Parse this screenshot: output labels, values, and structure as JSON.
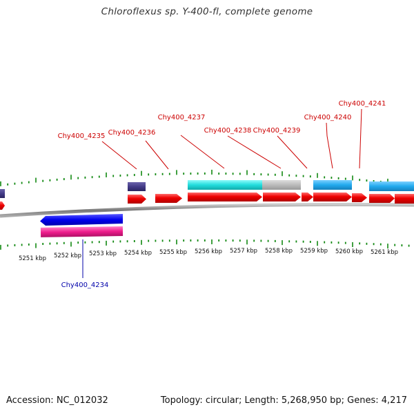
{
  "title": "Chloroflexus sp. Y-400-fl, complete genome",
  "accession": "Accession: NC_012032",
  "summary": "Topology: circular; Length: 5,268,950 bp; Genes: 4,217",
  "colors": {
    "forward_gene": "#ee0000",
    "cds_cyan": "#22dddd",
    "cds_light_blue": "#22aaee",
    "cds_gray": "#bbbbbb",
    "cds_dark": "#443c88",
    "reverse_gene": "#0000ee",
    "reverse_cds": "#ee1c8c",
    "label_forward": "#cc0000",
    "label_reverse": "#0000aa",
    "tick": "#118811",
    "backbone": "#888888"
  },
  "kbp_labels": [
    "5251 kbp",
    "5252 kbp",
    "5253 kbp",
    "5254 kbp",
    "5255 kbp",
    "5256 kbp",
    "5257 kbp",
    "5258 kbp",
    "5259 kbp",
    "5260 kbp",
    "5261 kbp"
  ],
  "gene_labels": [
    {
      "text": "Chy400_4234",
      "strand": "reverse"
    },
    {
      "text": "Chy400_4235",
      "strand": "forward"
    },
    {
      "text": "Chy400_4236",
      "strand": "forward"
    },
    {
      "text": "Chy400_4237",
      "strand": "forward"
    },
    {
      "text": "Chy400_4238",
      "strand": "forward"
    },
    {
      "text": "Chy400_4239",
      "strand": "forward"
    },
    {
      "text": "Chy400_4240",
      "strand": "forward"
    },
    {
      "text": "Chy400_4241",
      "strand": "forward"
    }
  ]
}
